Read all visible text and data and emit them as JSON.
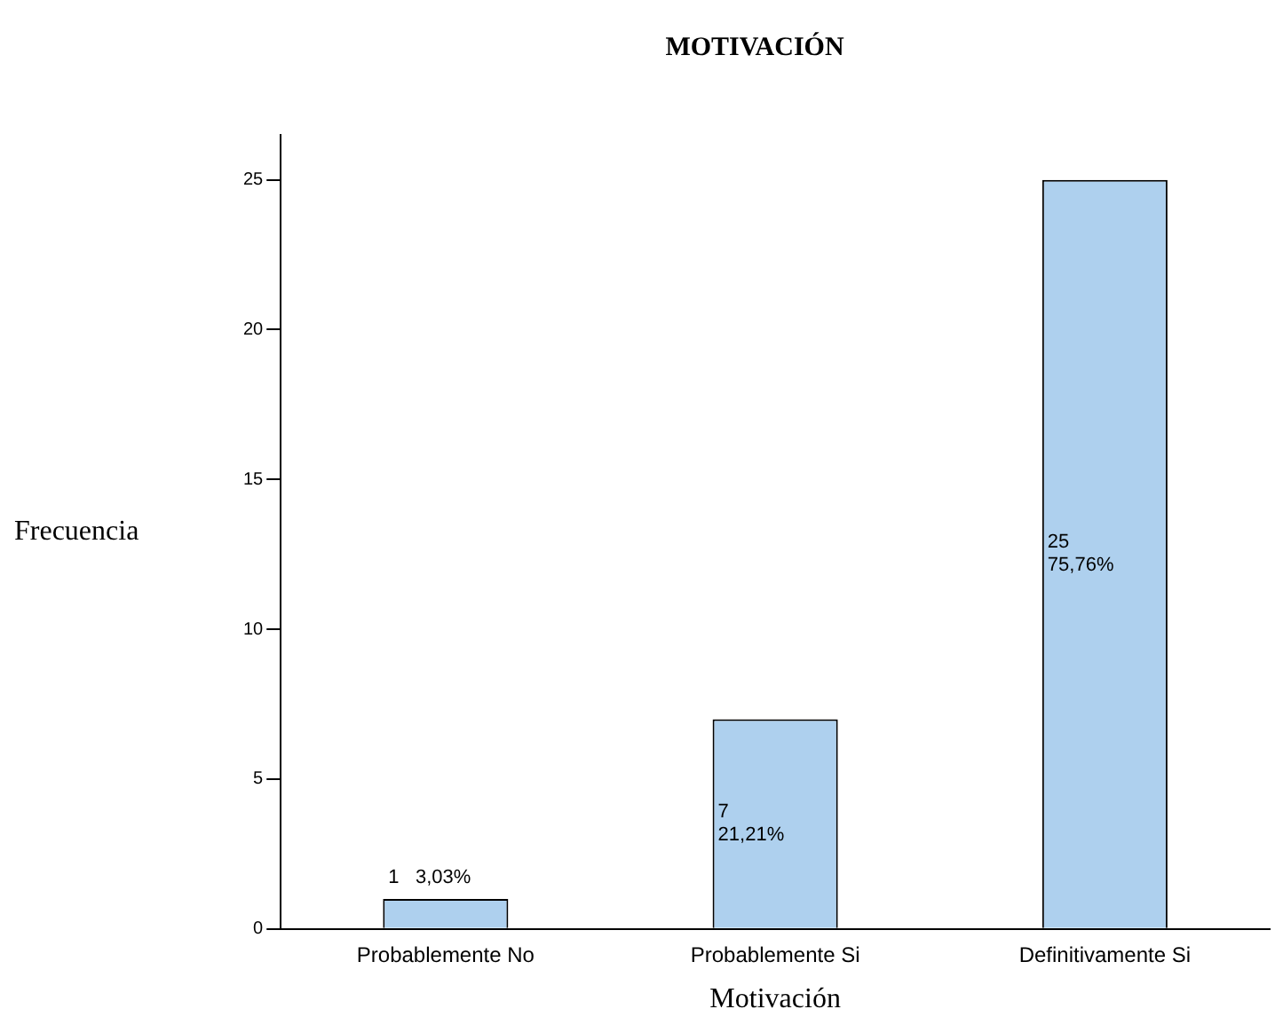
{
  "chart_data": {
    "type": "bar",
    "title": "MOTIVACIÓN",
    "xlabel": "Motivación",
    "ylabel": "Frecuencia",
    "categories": [
      "Probablemente No",
      "Probablemente Si",
      "Definitivamente Si"
    ],
    "values": [
      1,
      7,
      25
    ],
    "color": "#aed0ee",
    "value_labels": [
      "1   3,03%",
      "7\n21,21%",
      "25\n75,76%"
    ],
    "ylim": [
      0,
      26.5
    ],
    "yticks": [
      0,
      5,
      10,
      15,
      20,
      25
    ],
    "legend": false
  }
}
